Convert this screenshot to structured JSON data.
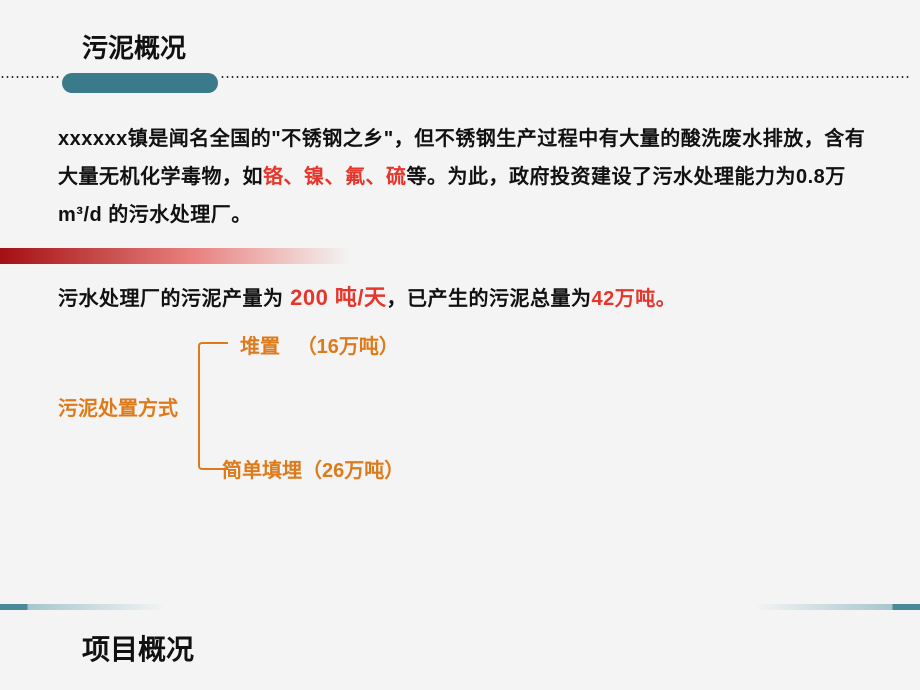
{
  "colors": {
    "background": "#f4f4f4",
    "text": "#111111",
    "highlight_red": "#e6352b",
    "pill_teal": "#3a7a8a",
    "orange": "#dd7a1a",
    "red_bar_start": "#a41013",
    "red_bar_mid": "#e8807e",
    "bottom_bar_teal": "#4a8a98",
    "bottom_bar_light": "#a6c6cd"
  },
  "typography": {
    "title_fontsize": 26,
    "body_fontsize": 20,
    "body_lineheight": 1.9,
    "footer_fontsize": 28,
    "font_family": "Microsoft YaHei"
  },
  "title": "污泥概况",
  "para1_before": "xxxxxx镇是闻名全国的\"不锈钢之乡\"，但不锈钢生产过程中有大量的酸洗废水排放，含有大量无机化学毒物，如",
  "para1_hl": "铬、镍、氟、硫",
  "para1_after": "等。为此，政府投资建设了污水处理能力为0.8万m³/d 的污水处理厂。",
  "para2_a": "污水处理厂的污泥产量为",
  "para2_daily": " 200 吨/天",
  "para2_b": "，已产生的污泥总量为",
  "para2_total": "42万吨。",
  "diagram": {
    "label": "污泥处置方式",
    "branch_top_label": "堆置",
    "branch_top_value": "（16万吨）",
    "branch_bot_label": "简单填埋",
    "branch_bot_value": "（26万吨）"
  },
  "footer_title": "项目概况"
}
